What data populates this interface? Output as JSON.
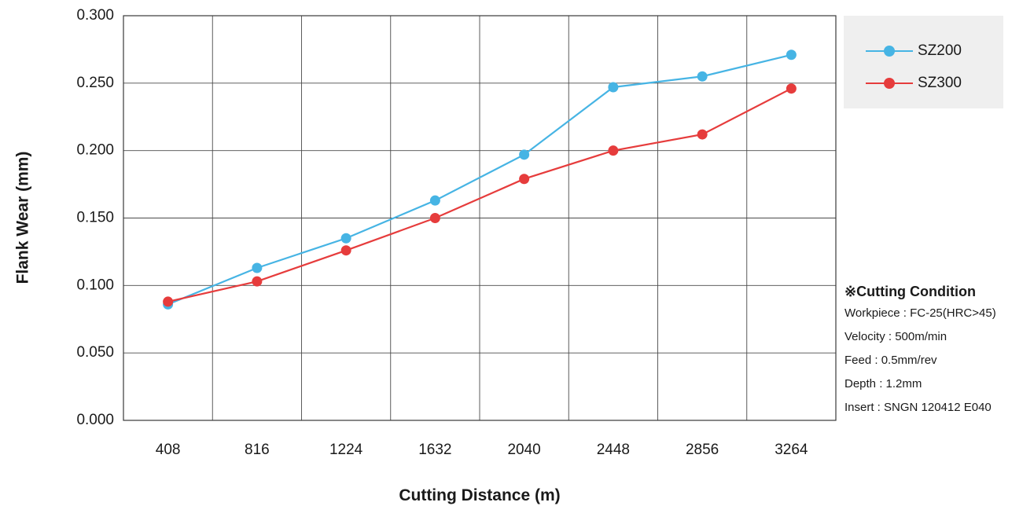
{
  "chart_data": {
    "type": "line",
    "xlabel": "Cutting Distance (m)",
    "ylabel": "Flank Wear (mm)",
    "categories": [
      "408",
      "816",
      "1224",
      "1632",
      "2040",
      "2448",
      "2856",
      "3264"
    ],
    "ylim": [
      0,
      0.3
    ],
    "yticks": [
      "0.000",
      "0.050",
      "0.100",
      "0.150",
      "0.200",
      "0.250",
      "0.300"
    ],
    "grid": true,
    "legend_position": "top-right",
    "series": [
      {
        "name": "SZ200",
        "color": "#46b4e4",
        "values": [
          0.086,
          0.113,
          0.135,
          0.163,
          0.197,
          0.247,
          0.255,
          0.271
        ]
      },
      {
        "name": "SZ300",
        "color": "#e63c3c",
        "values": [
          0.088,
          0.103,
          0.126,
          0.15,
          0.179,
          0.2,
          0.212,
          0.246
        ]
      }
    ]
  },
  "conditions": {
    "title": "※Cutting Condition",
    "lines": [
      "Workpiece : FC-25(HRC>45)",
      "Velocity : 500m/min",
      "Feed : 0.5mm/rev",
      "Depth : 1.2mm",
      "Insert : SNGN 120412 E040"
    ]
  }
}
